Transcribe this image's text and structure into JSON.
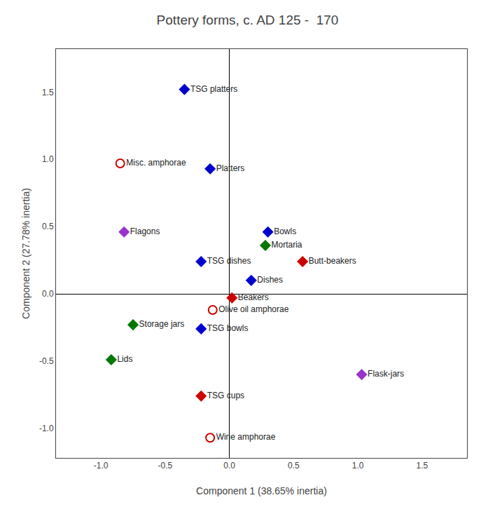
{
  "chart_data": {
    "type": "scatter",
    "title": "Pottery forms, c. AD 125 -  170",
    "xlabel": "Component 1 (38.65% inertia)",
    "ylabel": "Component 2 (27.78% inertia)",
    "xlim": [
      -1.35,
      1.85
    ],
    "ylim": [
      -1.22,
      1.82
    ],
    "xticks": [
      {
        "value": -1.0,
        "label": "-1.0"
      },
      -0.5,
      {
        "value": 0.0,
        "label": "0.0"
      },
      0.5,
      {
        "value": 1.0,
        "label": "1.0"
      },
      1.5
    ],
    "yticks": [
      {
        "value": -1.0,
        "label": "-1.0"
      },
      -0.5,
      {
        "value": 0.0,
        "label": "0.0"
      },
      0.5,
      {
        "value": 1.0,
        "label": "1.0"
      },
      1.5
    ],
    "grid": false,
    "series": [
      {
        "marker": "diamond",
        "labels": [
          "TSG platters",
          "Platters",
          "TSG dishes",
          "TSG bowls",
          "Dishes",
          "Bowls",
          "Mortaria",
          "Butt-beakers",
          "Beakers",
          "TSG cups",
          "Flagons",
          "Flask-jars",
          "Storage jars",
          "Lids"
        ],
        "x": [
          -0.35,
          -0.15,
          -0.22,
          -0.22,
          0.17,
          0.3,
          0.28,
          0.57,
          0.02,
          -0.22,
          -0.82,
          1.03,
          -0.75,
          -0.92
        ],
        "values": [
          1.52,
          0.93,
          0.24,
          -0.26,
          0.1,
          0.46,
          0.36,
          0.24,
          -0.03,
          -0.76,
          0.46,
          -0.6,
          -0.23,
          -0.49
        ],
        "colors": [
          "#0000cc",
          "#0000cc",
          "#0000cc",
          "#0000cc",
          "#0000cc",
          "#0000cc",
          "#007700",
          "#cc0000",
          "#cc0000",
          "#cc0000",
          "#9933cc",
          "#9933cc",
          "#007700",
          "#007700"
        ]
      },
      {
        "marker": "open circle",
        "labels": [
          "Misc. amphorae",
          "Olive oil amphorae",
          "Wine amphorae"
        ],
        "x": [
          -0.85,
          -0.13,
          -0.15
        ],
        "values": [
          0.97,
          -0.12,
          -1.07
        ],
        "colors": [
          "#cc0000",
          "#cc0000",
          "#cc0000"
        ]
      }
    ]
  }
}
